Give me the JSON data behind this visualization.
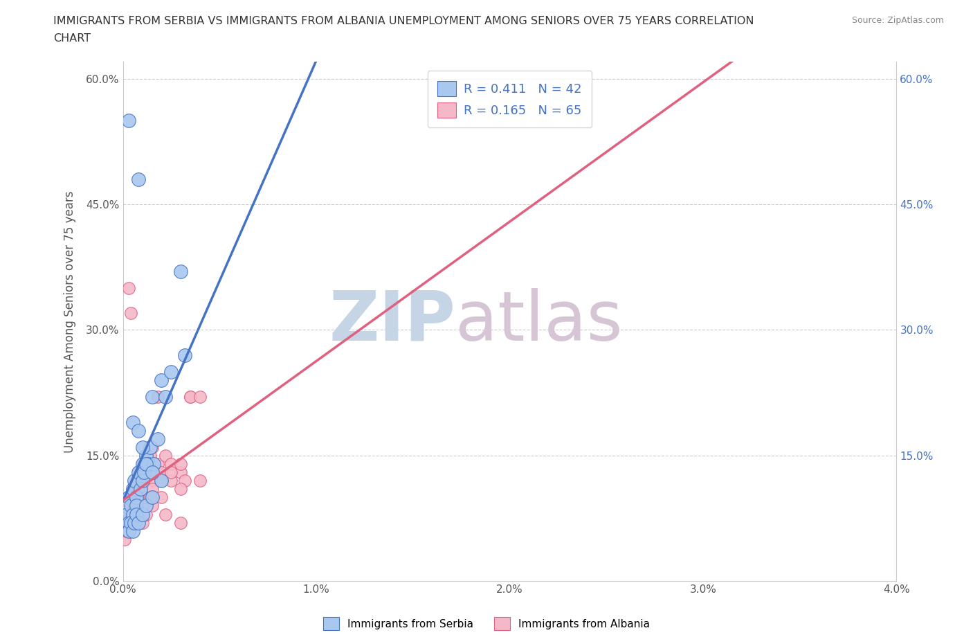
{
  "title": "IMMIGRANTS FROM SERBIA VS IMMIGRANTS FROM ALBANIA UNEMPLOYMENT AMONG SENIORS OVER 75 YEARS CORRELATION\nCHART",
  "source": "Source: ZipAtlas.com",
  "ylabel": "Unemployment Among Seniors over 75 years",
  "xlabel": "",
  "serbia_R": 0.411,
  "serbia_N": 42,
  "albania_R": 0.165,
  "albania_N": 65,
  "serbia_color": "#a8c8f0",
  "albania_color": "#f5b8c8",
  "serbia_line_color": "#4472c4",
  "albania_line_color": "#e06080",
  "watermark_zip": "ZIP",
  "watermark_atlas": "atlas",
  "watermark_color_zip": "#c8d8e8",
  "watermark_color_atlas": "#c8b8c8",
  "xlim": [
    0.0,
    0.04
  ],
  "ylim": [
    0.0,
    0.62
  ],
  "serbia_scatter_x": [
    0.0002,
    0.0003,
    0.0003,
    0.0004,
    0.0005,
    0.0005,
    0.0006,
    0.0007,
    0.0007,
    0.0008,
    0.0008,
    0.0009,
    0.001,
    0.001,
    0.0011,
    0.0012,
    0.0013,
    0.0014,
    0.0015,
    0.0016,
    0.0018,
    0.002,
    0.0022,
    0.0025,
    0.0003,
    0.0004,
    0.0005,
    0.0006,
    0.0007,
    0.0008,
    0.001,
    0.0012,
    0.0015,
    0.002,
    0.003,
    0.0032,
    0.0003,
    0.0005,
    0.0008,
    0.001,
    0.0012,
    0.0015
  ],
  "serbia_scatter_y": [
    0.08,
    0.07,
    0.1,
    0.09,
    0.11,
    0.08,
    0.12,
    0.1,
    0.09,
    0.13,
    0.48,
    0.11,
    0.12,
    0.14,
    0.13,
    0.15,
    0.14,
    0.16,
    0.22,
    0.14,
    0.17,
    0.24,
    0.22,
    0.25,
    0.06,
    0.07,
    0.06,
    0.07,
    0.08,
    0.07,
    0.08,
    0.09,
    0.1,
    0.12,
    0.37,
    0.27,
    0.55,
    0.19,
    0.18,
    0.16,
    0.14,
    0.13
  ],
  "albania_scatter_x": [
    0.0001,
    0.0002,
    0.0002,
    0.0003,
    0.0003,
    0.0004,
    0.0004,
    0.0005,
    0.0005,
    0.0006,
    0.0006,
    0.0007,
    0.0007,
    0.0008,
    0.0008,
    0.0009,
    0.001,
    0.001,
    0.0011,
    0.0012,
    0.0012,
    0.0013,
    0.0014,
    0.0015,
    0.0015,
    0.0016,
    0.0018,
    0.002,
    0.0022,
    0.0025,
    0.003,
    0.0032,
    0.0035,
    0.004,
    0.0003,
    0.0004,
    0.0005,
    0.0006,
    0.0007,
    0.0008,
    0.001,
    0.0012,
    0.0015,
    0.002,
    0.0025,
    0.003,
    0.0035,
    0.004,
    0.0002,
    0.0003,
    0.0004,
    0.0005,
    0.0006,
    0.0007,
    0.0008,
    0.001,
    0.0012,
    0.0015,
    0.002,
    0.0025,
    0.003,
    0.003,
    0.0022,
    0.0018,
    0.0014
  ],
  "albania_scatter_y": [
    0.05,
    0.07,
    0.06,
    0.08,
    0.07,
    0.08,
    0.09,
    0.09,
    0.1,
    0.1,
    0.11,
    0.1,
    0.12,
    0.11,
    0.13,
    0.12,
    0.12,
    0.14,
    0.13,
    0.14,
    0.13,
    0.14,
    0.15,
    0.12,
    0.16,
    0.13,
    0.14,
    0.13,
    0.15,
    0.14,
    0.13,
    0.12,
    0.22,
    0.12,
    0.35,
    0.32,
    0.08,
    0.09,
    0.1,
    0.08,
    0.07,
    0.08,
    0.09,
    0.1,
    0.12,
    0.11,
    0.22,
    0.22,
    0.06,
    0.07,
    0.07,
    0.08,
    0.09,
    0.08,
    0.1,
    0.09,
    0.1,
    0.11,
    0.12,
    0.13,
    0.14,
    0.07,
    0.08,
    0.22,
    0.1
  ],
  "yticks": [
    0.0,
    0.15,
    0.3,
    0.45,
    0.6
  ],
  "ytick_labels": [
    "0.0%",
    "15.0%",
    "30.0%",
    "45.0%",
    "60.0%"
  ],
  "xticks": [
    0.0,
    0.01,
    0.02,
    0.03,
    0.04
  ],
  "xtick_labels": [
    "0.0%",
    "1.0%",
    "2.0%",
    "3.0%",
    "4.0%"
  ],
  "right_ytick_positions": [
    0.6,
    0.45,
    0.3,
    0.15
  ],
  "right_ytick_labels": [
    "60.0%",
    "45.0%",
    "30.0%",
    "15.0%"
  ],
  "grid_color": "#cccccc",
  "background_color": "#ffffff",
  "scatter_size_serbia": 200,
  "scatter_size_albania": 160
}
